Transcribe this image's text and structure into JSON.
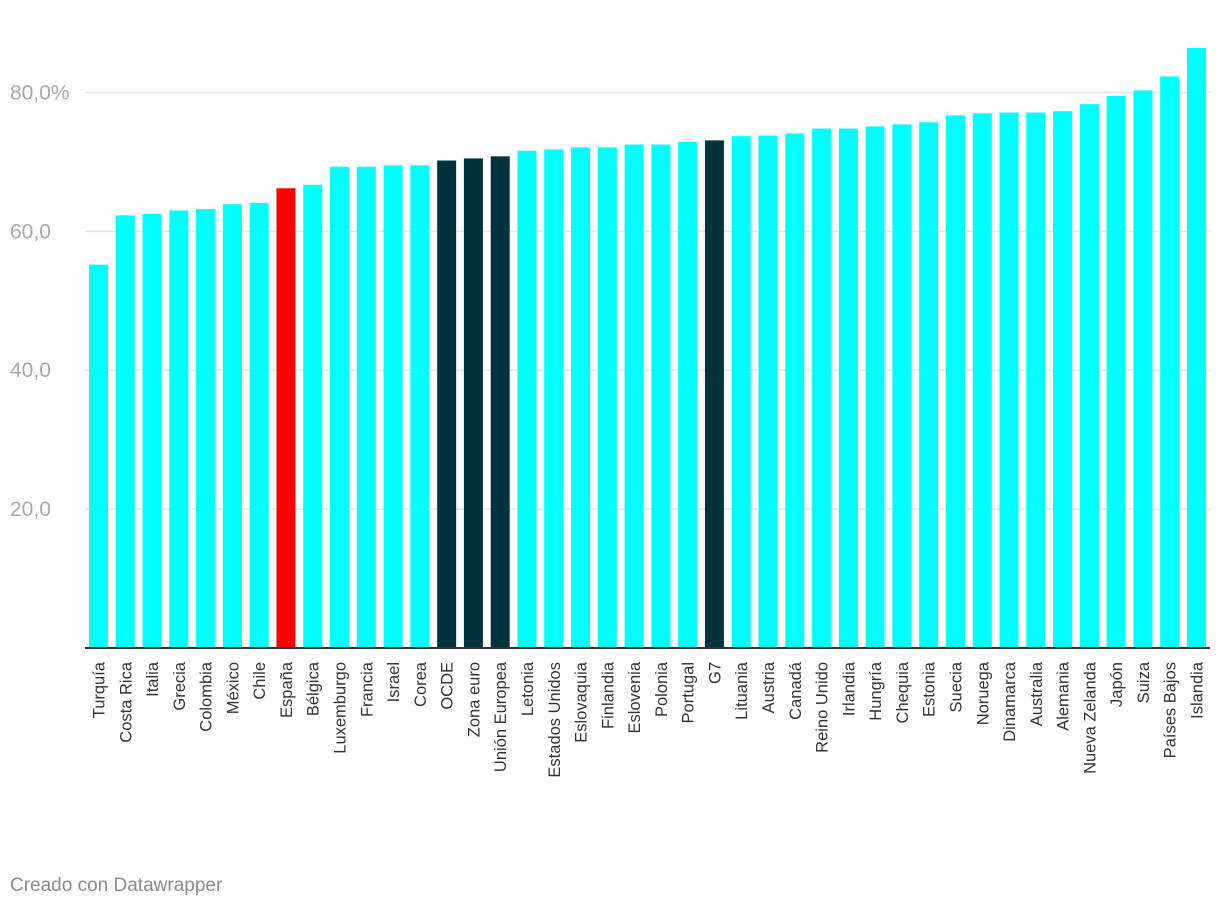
{
  "chart_data": {
    "type": "bar",
    "categories": [
      "Turquía",
      "Costa Rica",
      "Italia",
      "Grecia",
      "Colombia",
      "México",
      "Chile",
      "España",
      "Bélgica",
      "Luxemburgo",
      "Francia",
      "Israel",
      "Corea",
      "OCDE",
      "Zona euro",
      "Unión Europea",
      "Letonia",
      "Estados Unidos",
      "Eslovaquia",
      "Finlandia",
      "Eslovenia",
      "Polonia",
      "Portugal",
      "G7",
      "Lituania",
      "Austria",
      "Canadá",
      "Reino Unido",
      "Irlandia",
      "Hungría",
      "Chequia",
      "Estonia",
      "Suecia",
      "Noruega",
      "Dinamarca",
      "Australia",
      "Alemania",
      "Nueva Zelanda",
      "Japón",
      "Suiza",
      "Países Bajos",
      "Islandia"
    ],
    "values": [
      55.2,
      62.3,
      62.5,
      63.0,
      63.2,
      63.9,
      64.1,
      66.2,
      66.7,
      69.3,
      69.3,
      69.5,
      69.5,
      70.2,
      70.5,
      70.8,
      71.6,
      71.8,
      72.1,
      72.1,
      72.5,
      72.5,
      72.9,
      73.1,
      73.7,
      73.8,
      74.1,
      74.8,
      74.8,
      75.1,
      75.4,
      75.7,
      76.7,
      77.0,
      77.1,
      77.1,
      77.3,
      78.3,
      79.5,
      80.3,
      82.3,
      86.4
    ],
    "highlight": {
      "España": "#ff0000",
      "OCDE": "#01333f",
      "Zona euro": "#01333f",
      "Unión Europea": "#01333f",
      "G7": "#01333f"
    },
    "default_color": "#00ffff",
    "ylim": [
      0,
      86.4
    ],
    "yticks": [
      20,
      40,
      60,
      80
    ],
    "ytick_labels": [
      "20,0",
      "40,0",
      "60,0",
      "80,0%"
    ],
    "title": "",
    "xlabel": "",
    "ylabel": "",
    "grid": true
  },
  "footer": {
    "credit": "Creado con Datawrapper"
  }
}
